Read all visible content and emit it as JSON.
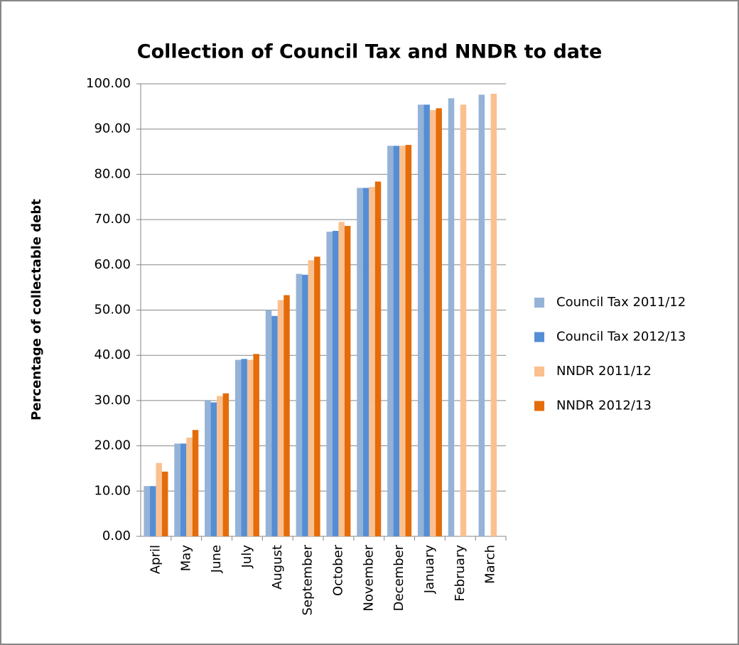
{
  "chart_data": {
    "type": "bar",
    "title": "Collection of Council Tax and NNDR to date",
    "y_label": "Percentage of collectable debt",
    "categories": [
      "April",
      "May",
      "June",
      "July",
      "August",
      "September",
      "October",
      "November",
      "December",
      "January",
      "February",
      "March"
    ],
    "series": [
      {
        "name": "Council Tax 2011/12",
        "color": "#95b3d7",
        "values": [
          11.1,
          20.5,
          30.0,
          39.0,
          50.0,
          58.0,
          67.3,
          77.0,
          86.3,
          95.4,
          96.8,
          97.6
        ]
      },
      {
        "name": "Council Tax 2012/13",
        "color": "#558ed5",
        "values": [
          11.1,
          20.5,
          29.6,
          39.2,
          48.7,
          57.8,
          67.5,
          77.0,
          86.3,
          95.4,
          null,
          null
        ]
      },
      {
        "name": "NNDR 2011/12",
        "color": "#fac090",
        "values": [
          16.2,
          21.8,
          31.0,
          39.0,
          52.2,
          61.0,
          69.5,
          77.2,
          86.3,
          94.2,
          95.4,
          97.8
        ]
      },
      {
        "name": "NNDR 2012/13",
        "color": "#e46c0a",
        "values": [
          14.3,
          23.5,
          31.6,
          40.3,
          53.3,
          61.8,
          68.6,
          78.4,
          86.5,
          94.6,
          null,
          null
        ]
      }
    ],
    "ylim": [
      0,
      100
    ],
    "yticks": [
      {
        "value": 0,
        "label": "0.00"
      },
      {
        "value": 10,
        "label": "10.00"
      },
      {
        "value": 20,
        "label": "20.00"
      },
      {
        "value": 30,
        "label": "30.00"
      },
      {
        "value": 40,
        "label": "40.00"
      },
      {
        "value": 50,
        "label": "50.00"
      },
      {
        "value": 60,
        "label": "60.00"
      },
      {
        "value": 70,
        "label": "70.00"
      },
      {
        "value": 80,
        "label": "80.00"
      },
      {
        "value": 90,
        "label": "90.00"
      },
      {
        "value": 100,
        "label": "100.00"
      }
    ],
    "grid": true,
    "legend": "right"
  }
}
